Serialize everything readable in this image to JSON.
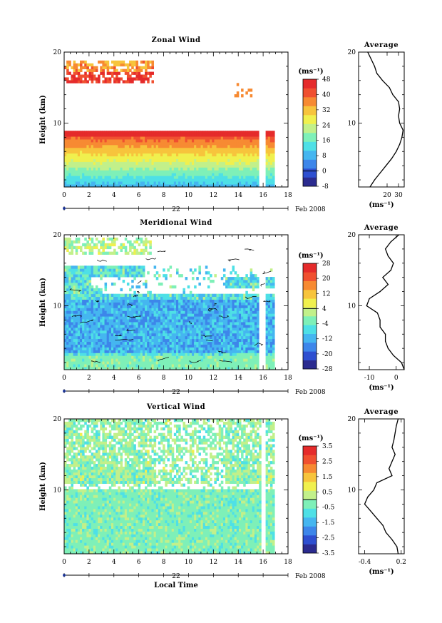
{
  "figure": {
    "xlabel": "Local Time",
    "date_label": "Feb 2008",
    "day_label": "22",
    "avg_title": "Average",
    "unit_label": "(ms⁻¹)",
    "colors": {
      "jet": [
        "#2b2b8f",
        "#2e4fd0",
        "#3d86ea",
        "#45b6f0",
        "#4ee0e6",
        "#7ef0b8",
        "#c2f08a",
        "#f0f04e",
        "#f7c43c",
        "#f78a32",
        "#f05030",
        "#e52b2b"
      ]
    }
  },
  "chart_data": [
    {
      "type": "heatmap",
      "title": "Zonal Wind",
      "ylabel": "Height (km)",
      "xlim": [
        0,
        18
      ],
      "ylim": [
        1,
        20
      ],
      "x_ticks": [
        0,
        2,
        4,
        6,
        8,
        10,
        12,
        14,
        16,
        18
      ],
      "y_ticks": [
        10,
        20
      ],
      "colorbar": {
        "min": -8,
        "max": 48,
        "ticks": [
          48,
          40,
          32,
          24,
          16,
          8,
          0,
          -8
        ]
      },
      "avg_profile": {
        "xlim": [
          -5,
          35
        ],
        "x_ticks": [
          20,
          30
        ],
        "heights": [
          1,
          2,
          3,
          4,
          5,
          6,
          7,
          8,
          9,
          10,
          11,
          12,
          13,
          14,
          15,
          16,
          17,
          18,
          19,
          20
        ],
        "values": [
          5,
          9,
          14,
          19,
          24,
          28,
          31,
          33,
          34,
          31,
          30,
          31,
          30,
          25,
          22,
          16,
          11,
          9,
          6,
          3
        ]
      }
    },
    {
      "type": "heatmap",
      "title": "Meridional Wind",
      "ylabel": "Height (km)",
      "xlim": [
        0,
        18
      ],
      "ylim": [
        1,
        20
      ],
      "x_ticks": [
        0,
        2,
        4,
        6,
        8,
        10,
        12,
        14,
        16,
        18
      ],
      "y_ticks": [
        10,
        20
      ],
      "colorbar": {
        "min": -28,
        "max": 28,
        "ticks": [
          28,
          20,
          12,
          4,
          -4,
          -12,
          -20,
          -28
        ]
      },
      "avg_profile": {
        "xlim": [
          -14,
          3
        ],
        "x_ticks": [
          -10,
          0
        ],
        "heights": [
          1,
          2,
          3,
          4,
          5,
          6,
          7,
          8,
          9,
          10,
          11,
          12,
          13,
          14,
          15,
          16,
          17,
          18,
          19,
          20
        ],
        "values": [
          3,
          2,
          -1,
          -3,
          -4,
          -4,
          -6,
          -6,
          -7,
          -11,
          -10,
          -6,
          -3,
          -5,
          -2,
          -1,
          -3,
          -4,
          -2,
          1
        ]
      }
    },
    {
      "type": "heatmap",
      "title": "Vertical Wind",
      "ylabel": "Height (km)",
      "xlim": [
        0,
        18
      ],
      "ylim": [
        1,
        20
      ],
      "x_ticks": [
        0,
        2,
        4,
        6,
        8,
        10,
        12,
        14,
        16,
        18
      ],
      "y_ticks": [
        10,
        20
      ],
      "colorbar": {
        "min": -3.5,
        "max": 3.5,
        "ticks": [
          3.5,
          2.5,
          1.5,
          0.5,
          -0.5,
          -1.5,
          -2.5,
          -3.5
        ]
      },
      "avg_profile": {
        "xlim": [
          -0.5,
          0.25
        ],
        "x_ticks": [
          -0.4,
          0.2
        ],
        "heights": [
          1,
          2,
          3,
          4,
          5,
          6,
          7,
          8,
          9,
          10,
          11,
          12,
          13,
          14,
          15,
          16,
          17,
          18,
          19,
          20
        ],
        "values": [
          0.15,
          0.13,
          0.05,
          -0.05,
          -0.1,
          -0.2,
          -0.3,
          -0.4,
          -0.35,
          -0.25,
          -0.2,
          0.05,
          0.0,
          0.05,
          0.1,
          0.05,
          0.08,
          0.1,
          0.12,
          0.15
        ]
      }
    }
  ]
}
